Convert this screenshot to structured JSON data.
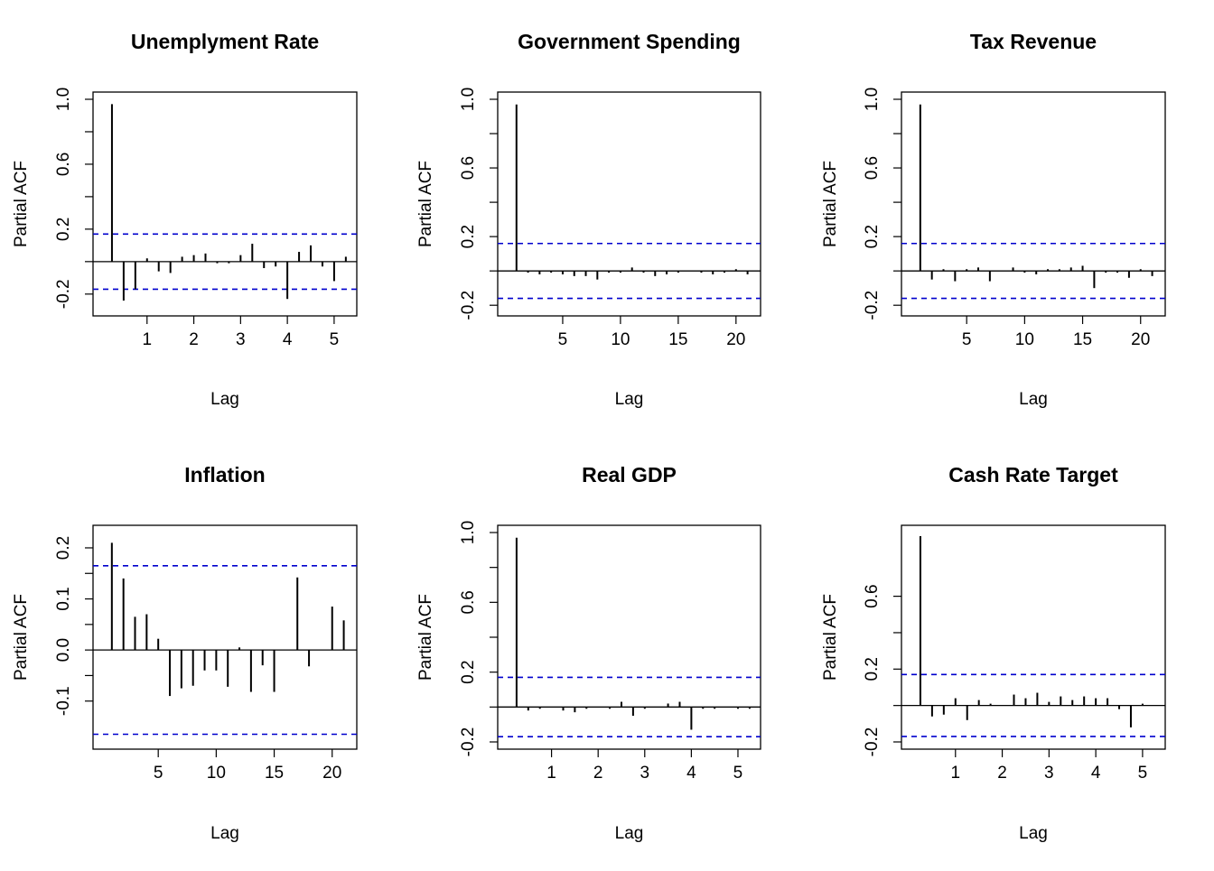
{
  "chart_data": [
    {
      "type": "bar",
      "title": "Unemplyment Rate",
      "xlabel": "Lag",
      "ylabel": "Partial ACF",
      "xlim": [
        0.0,
        5.33
      ],
      "ylim": [
        -0.29,
        1.0
      ],
      "xticks": [
        1,
        2,
        3,
        4,
        5
      ],
      "yticks": [
        -0.2,
        0.2,
        0.6,
        1.0
      ],
      "ytick_labels": [
        "-0.2",
        "0.2",
        "0.6",
        "1.0"
      ],
      "ci": 0.17,
      "lag_step": 0.25,
      "values": [
        0.97,
        -0.24,
        -0.17,
        0.02,
        -0.06,
        -0.07,
        0.03,
        0.04,
        0.05,
        -0.01,
        -0.01,
        0.04,
        0.11,
        -0.04,
        -0.03,
        -0.23,
        0.06,
        0.1,
        -0.03,
        -0.12,
        0.03
      ]
    },
    {
      "type": "bar",
      "title": "Government Spending",
      "xlabel": "Lag",
      "ylabel": "Partial ACF",
      "xlim": [
        0.0,
        21.5
      ],
      "ylim": [
        -0.22,
        1.0
      ],
      "xticks": [
        5,
        10,
        15,
        20
      ],
      "yticks": [
        -0.2,
        0.2,
        0.6,
        1.0
      ],
      "ytick_labels": [
        "-0.2",
        "0.2",
        "0.6",
        "1.0"
      ],
      "ci": 0.16,
      "lag_step": 1,
      "values": [
        0.97,
        -0.01,
        -0.02,
        -0.01,
        -0.02,
        -0.03,
        -0.03,
        -0.05,
        -0.01,
        -0.01,
        0.02,
        -0.01,
        -0.03,
        -0.02,
        -0.01,
        0.0,
        -0.01,
        -0.02,
        -0.01,
        0.01,
        -0.02
      ]
    },
    {
      "type": "bar",
      "title": "Tax Revenue",
      "xlabel": "Lag",
      "ylabel": "Partial ACF",
      "xlim": [
        0.0,
        21.5
      ],
      "ylim": [
        -0.22,
        1.0
      ],
      "xticks": [
        5,
        10,
        15,
        20
      ],
      "yticks": [
        -0.2,
        0.2,
        0.6,
        1.0
      ],
      "ytick_labels": [
        "-0.2",
        "0.2",
        "0.6",
        "1.0"
      ],
      "ci": 0.16,
      "lag_step": 1,
      "values": [
        0.97,
        -0.05,
        0.01,
        -0.06,
        0.01,
        0.02,
        -0.06,
        0.0,
        0.02,
        -0.01,
        -0.02,
        0.01,
        0.01,
        0.02,
        0.03,
        -0.1,
        -0.01,
        -0.01,
        -0.04,
        0.01,
        -0.03
      ]
    },
    {
      "type": "bar",
      "title": "Inflation",
      "xlabel": "Lag",
      "ylabel": "Partial ACF",
      "xlim": [
        0.0,
        21.5
      ],
      "ylim": [
        -0.18,
        0.23
      ],
      "xticks": [
        5,
        10,
        15,
        20
      ],
      "yticks": [
        -0.1,
        0.0,
        0.1,
        0.2
      ],
      "ytick_labels": [
        "-0.1",
        "0.0",
        "0.1",
        "0.2"
      ],
      "ci": 0.165,
      "lag_step": 1,
      "values": [
        0.21,
        0.14,
        0.065,
        0.07,
        0.022,
        -0.09,
        -0.075,
        -0.07,
        -0.04,
        -0.04,
        -0.072,
        0.005,
        -0.082,
        -0.03,
        -0.082,
        0.0,
        0.142,
        -0.032,
        0.0,
        0.085,
        0.058
      ]
    },
    {
      "type": "bar",
      "title": "Real GDP",
      "xlabel": "Lag",
      "ylabel": "Partial ACF",
      "xlim": [
        0.0,
        5.33
      ],
      "ylim": [
        -0.2,
        1.0
      ],
      "xticks": [
        1,
        2,
        3,
        4,
        5
      ],
      "yticks": [
        -0.2,
        0.2,
        0.6,
        1.0
      ],
      "ytick_labels": [
        "-0.2",
        "0.2",
        "0.6",
        "1.0"
      ],
      "ci": 0.17,
      "lag_step": 0.25,
      "values": [
        0.97,
        -0.02,
        -0.01,
        0.0,
        -0.02,
        -0.03,
        -0.01,
        0.0,
        -0.01,
        0.03,
        -0.05,
        -0.01,
        0.0,
        0.02,
        0.03,
        -0.13,
        -0.01,
        -0.01,
        0.0,
        -0.01,
        -0.01
      ]
    },
    {
      "type": "bar",
      "title": "Cash Rate Target",
      "xlabel": "Lag",
      "ylabel": "Partial ACF",
      "xlim": [
        0.0,
        5.33
      ],
      "ylim": [
        -0.2,
        0.95
      ],
      "xticks": [
        1,
        2,
        3,
        4,
        5
      ],
      "yticks": [
        -0.2,
        0.2,
        0.6
      ],
      "ytick_labels": [
        "-0.2",
        "0.2",
        "0.6"
      ],
      "ci": 0.17,
      "lag_step": 0.25,
      "values": [
        0.93,
        -0.06,
        -0.05,
        0.04,
        -0.08,
        0.03,
        0.01,
        0.0,
        0.06,
        0.04,
        0.07,
        0.02,
        0.05,
        0.03,
        0.05,
        0.04,
        0.04,
        -0.02,
        -0.12,
        0.01,
        0.0
      ]
    }
  ],
  "colors": {
    "ci_line": "#0000cd",
    "bars": "#000000",
    "axes": "#000000",
    "background": "#ffffff"
  }
}
